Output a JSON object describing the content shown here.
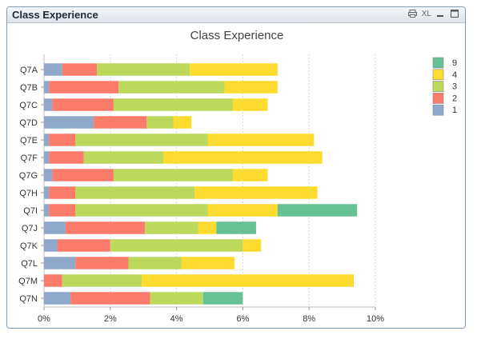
{
  "window": {
    "title": "Class Experience",
    "icons": {
      "print": "print-icon",
      "xl": "XL",
      "minimize": "minimize-icon",
      "maximize": "maximize-icon"
    }
  },
  "chart_data": {
    "type": "bar",
    "orientation": "horizontal",
    "stacked": true,
    "title": "Class Experience",
    "xlabel": "",
    "ylabel": "",
    "xlim": [
      0,
      10
    ],
    "xticks": [
      0,
      2,
      4,
      6,
      8,
      10
    ],
    "xtick_labels": [
      "0%",
      "2%",
      "4%",
      "6%",
      "8%",
      "10%"
    ],
    "grid": true,
    "legend_position": "top-right",
    "categories": [
      "Q7A",
      "Q7B",
      "Q7C",
      "Q7D",
      "Q7E",
      "Q7F",
      "Q7G",
      "Q7H",
      "Q7I",
      "Q7J",
      "Q7K",
      "Q7L",
      "Q7M",
      "Q7N"
    ],
    "series": [
      {
        "name": "1",
        "color": "#8fa8cb",
        "values": [
          0.55,
          0.15,
          0.25,
          1.5,
          0.15,
          0.15,
          0.25,
          0.15,
          0.15,
          0.65,
          0.4,
          0.95,
          0.0,
          0.8
        ]
      },
      {
        "name": "2",
        "color": "#fb7b6b",
        "values": [
          1.05,
          2.1,
          1.85,
          1.6,
          0.8,
          1.05,
          1.85,
          0.8,
          0.8,
          2.4,
          1.6,
          1.6,
          0.55,
          2.4
        ]
      },
      {
        "name": "3",
        "color": "#bcd95b",
        "values": [
          2.8,
          3.2,
          3.6,
          0.8,
          4.0,
          2.4,
          3.6,
          3.6,
          4.0,
          1.6,
          4.0,
          1.6,
          2.4,
          1.6
        ]
      },
      {
        "name": "4",
        "color": "#fddb2f",
        "values": [
          2.65,
          1.6,
          1.05,
          0.55,
          3.2,
          4.8,
          1.05,
          3.7,
          2.1,
          0.55,
          0.55,
          1.6,
          6.4,
          0.0
        ]
      },
      {
        "name": "9",
        "color": "#66c294",
        "values": [
          0.0,
          0.0,
          0.0,
          0.0,
          0.0,
          0.0,
          0.0,
          0.0,
          2.4,
          1.2,
          0.0,
          0.0,
          0.0,
          1.2
        ]
      }
    ],
    "legend_order": [
      "9",
      "4",
      "3",
      "2",
      "1"
    ]
  }
}
